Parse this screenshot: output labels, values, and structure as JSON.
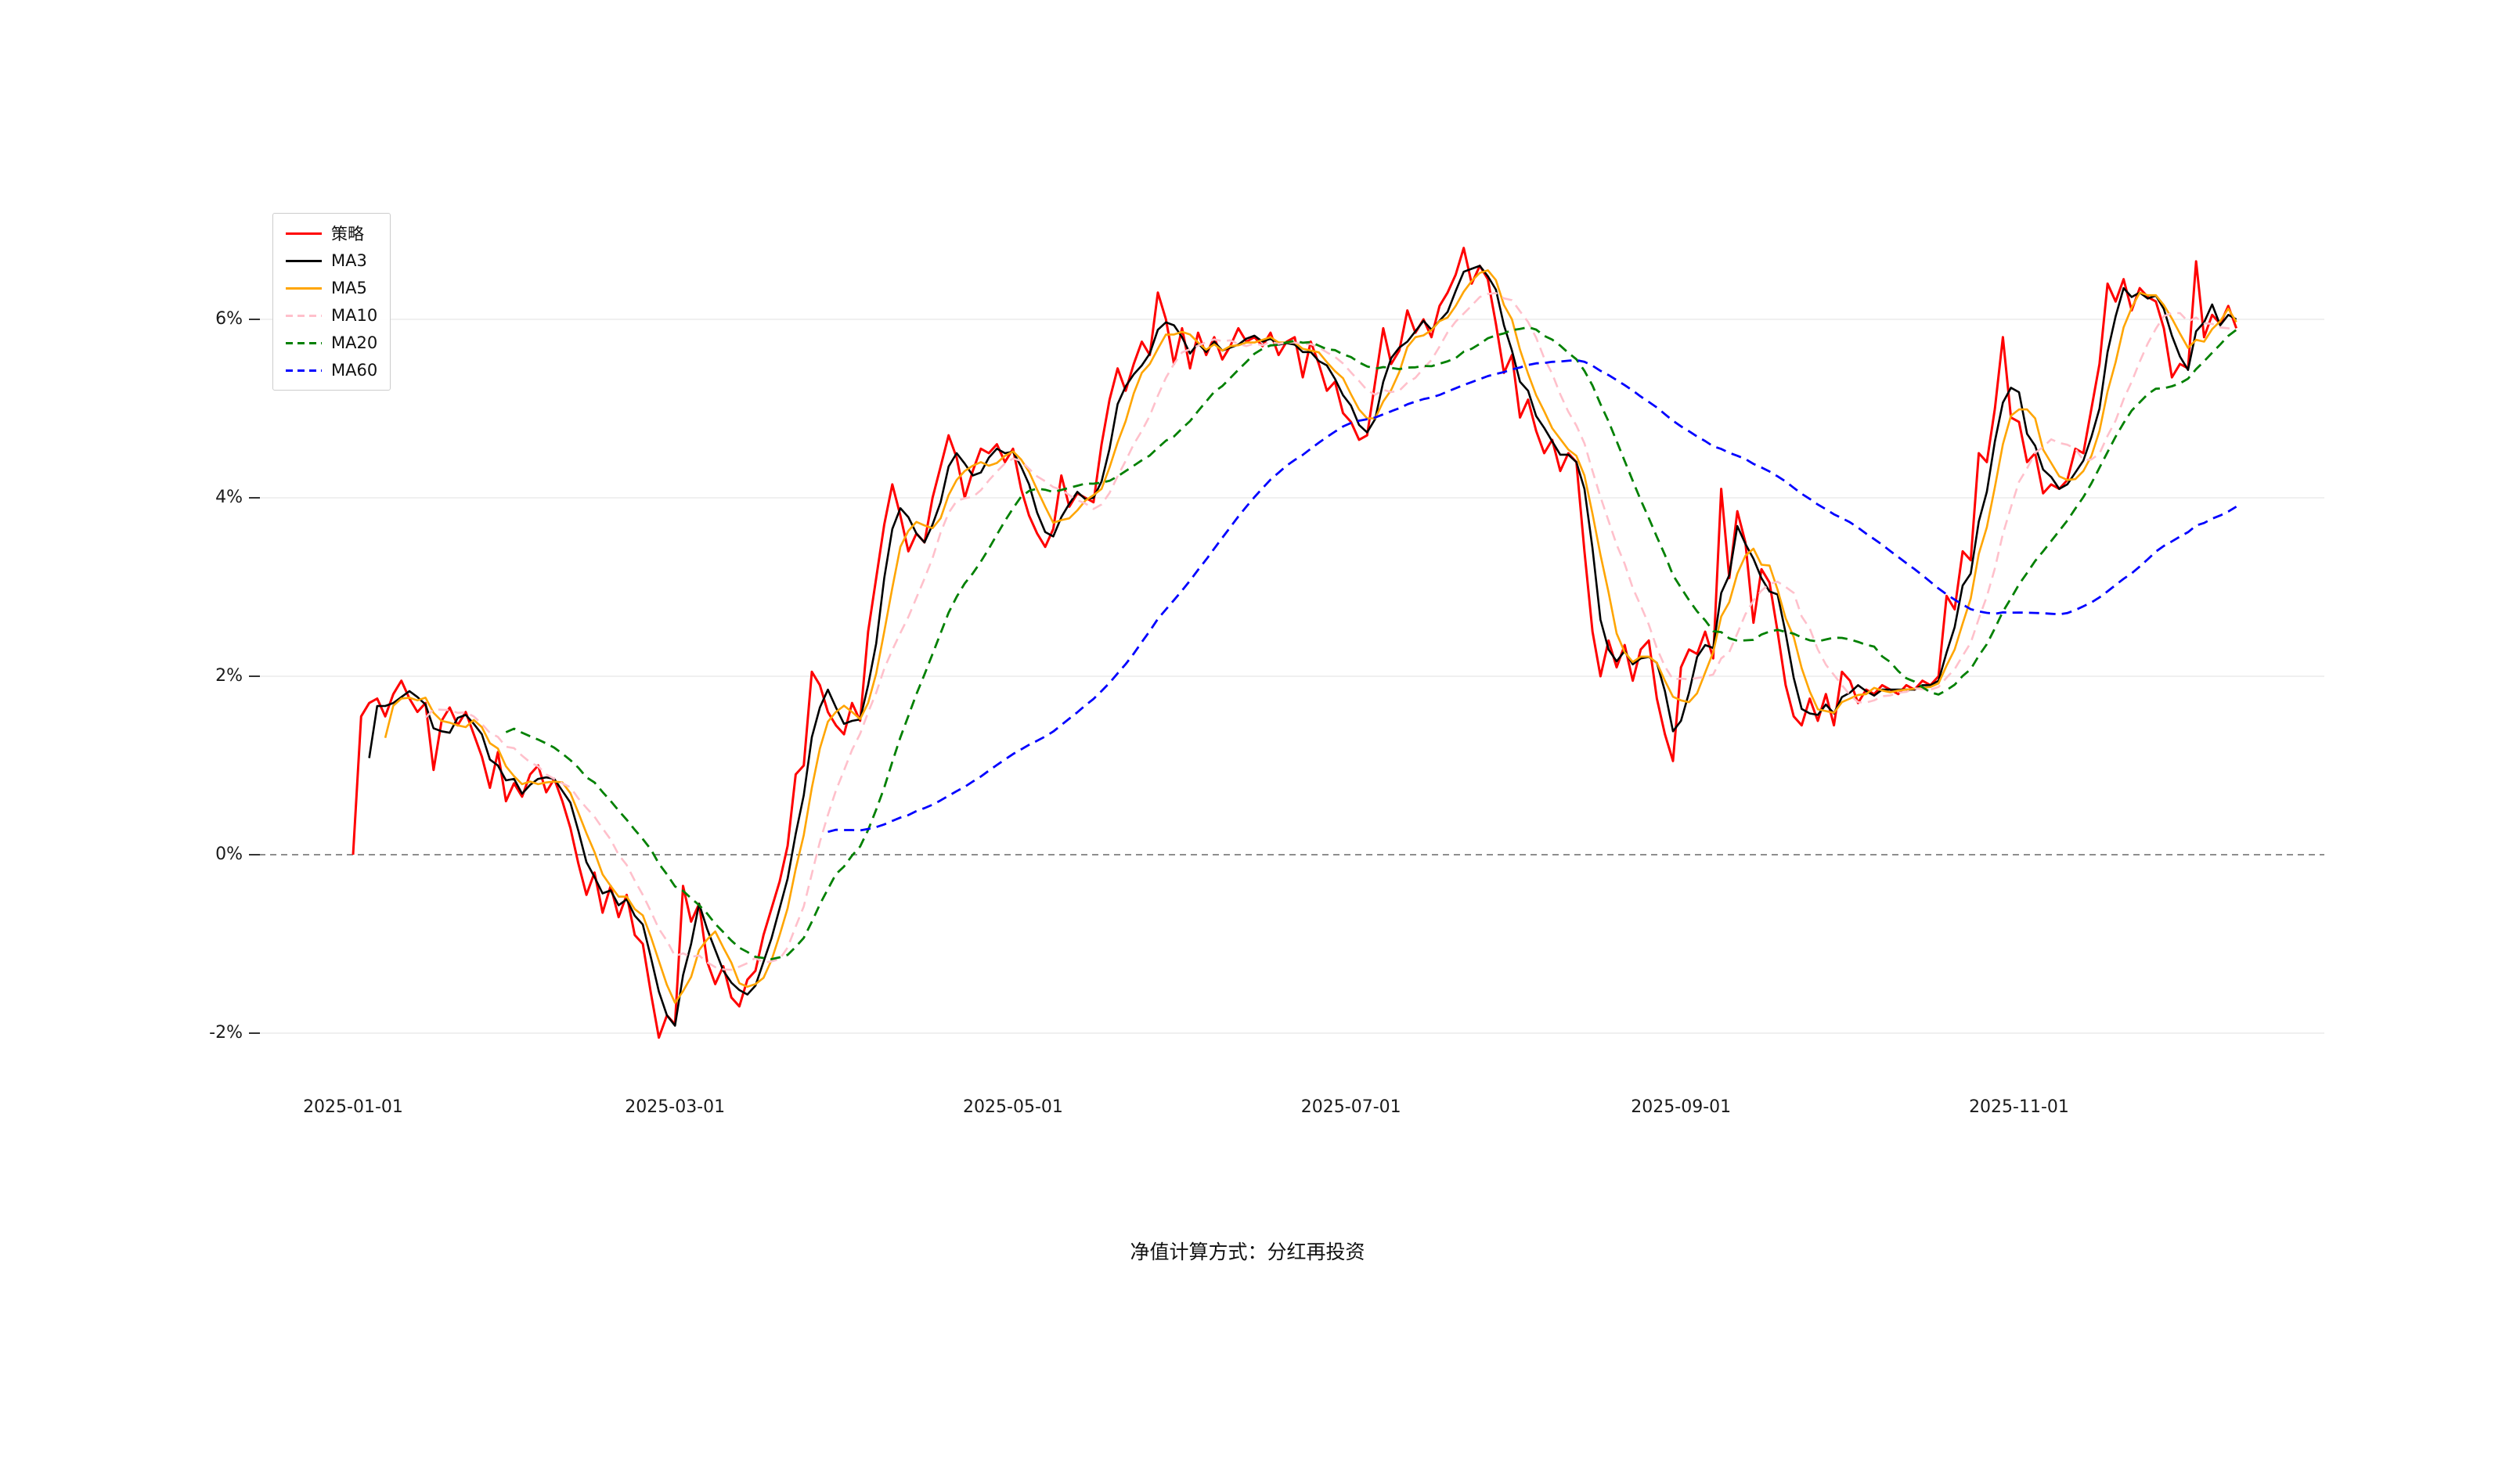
{
  "page": {
    "background": "#ffffff",
    "caption": "净值计算方式：分红再投资"
  },
  "chart_data": {
    "type": "line",
    "title": "",
    "xlabel": "",
    "ylabel": "",
    "grid": "horizontal-light",
    "legend_position": "top-left",
    "x_axis_type": "trading-day-index",
    "n_points": 235,
    "ylim": [
      -2.5,
      7.2
    ],
    "zero_line": {
      "style": "dashed",
      "color": "#7f7f7f"
    },
    "y_ticks": [
      {
        "value": 6,
        "label": "6%"
      },
      {
        "value": 4,
        "label": "4%"
      },
      {
        "value": 2,
        "label": "2%"
      },
      {
        "value": 0,
        "label": "0%"
      },
      {
        "value": -2,
        "label": "-2%"
      }
    ],
    "x_ticks": [
      {
        "index": 0,
        "label": "2025-01-01"
      },
      {
        "index": 40,
        "label": "2025-03-01"
      },
      {
        "index": 82,
        "label": "2025-05-01"
      },
      {
        "index": 124,
        "label": "2025-07-01"
      },
      {
        "index": 165,
        "label": "2025-09-01"
      },
      {
        "index": 207,
        "label": "2025-11-01"
      }
    ],
    "series": [
      {
        "key": "strategy",
        "name": "策略",
        "color": "#ff0000",
        "dash": "solid",
        "width": 3,
        "values": [
          0.0,
          1.55,
          1.7,
          1.75,
          1.55,
          1.8,
          1.95,
          1.75,
          1.6,
          1.7,
          0.95,
          1.5,
          1.65,
          1.45,
          1.6,
          1.35,
          1.1,
          0.75,
          1.15,
          0.6,
          0.8,
          0.65,
          0.9,
          1.0,
          0.7,
          0.85,
          0.6,
          0.3,
          -0.1,
          -0.45,
          -0.2,
          -0.65,
          -0.35,
          -0.7,
          -0.45,
          -0.9,
          -1.0,
          -1.55,
          -2.05,
          -1.8,
          -1.9,
          -0.35,
          -0.75,
          -0.55,
          -1.2,
          -1.45,
          -1.25,
          -1.6,
          -1.7,
          -1.4,
          -1.3,
          -0.9,
          -0.6,
          -0.3,
          0.1,
          0.9,
          1.0,
          2.05,
          1.9,
          1.6,
          1.45,
          1.35,
          1.7,
          1.5,
          2.5,
          3.1,
          3.7,
          4.15,
          3.8,
          3.4,
          3.6,
          3.5,
          4.0,
          4.35,
          4.7,
          4.45,
          4.0,
          4.3,
          4.55,
          4.5,
          4.6,
          4.4,
          4.55,
          4.1,
          3.8,
          3.6,
          3.45,
          3.65,
          4.25,
          3.9,
          4.05,
          4.0,
          3.95,
          4.6,
          5.1,
          5.45,
          5.2,
          5.5,
          5.75,
          5.6,
          6.3,
          6.0,
          5.5,
          5.9,
          5.45,
          5.85,
          5.6,
          5.8,
          5.55,
          5.7,
          5.9,
          5.75,
          5.8,
          5.7,
          5.85,
          5.6,
          5.75,
          5.8,
          5.35,
          5.75,
          5.5,
          5.2,
          5.3,
          4.95,
          4.85,
          4.65,
          4.7,
          5.3,
          5.9,
          5.5,
          5.65,
          6.1,
          5.85,
          6.0,
          5.8,
          6.15,
          6.3,
          6.5,
          6.8,
          6.4,
          6.6,
          6.45,
          5.95,
          5.4,
          5.6,
          4.9,
          5.1,
          4.75,
          4.5,
          4.65,
          4.3,
          4.5,
          4.4,
          3.4,
          2.5,
          2.0,
          2.4,
          2.1,
          2.35,
          1.95,
          2.3,
          2.4,
          1.75,
          1.35,
          1.05,
          2.1,
          2.3,
          2.25,
          2.5,
          2.2,
          4.1,
          3.1,
          3.85,
          3.5,
          2.6,
          3.2,
          3.05,
          2.5,
          1.9,
          1.55,
          1.45,
          1.75,
          1.5,
          1.8,
          1.45,
          2.05,
          1.95,
          1.7,
          1.85,
          1.8,
          1.9,
          1.85,
          1.8,
          1.9,
          1.85,
          1.95,
          1.9,
          2.0,
          2.9,
          2.75,
          3.4,
          3.3,
          4.5,
          4.4,
          5.0,
          5.8,
          4.9,
          4.85,
          4.4,
          4.5,
          4.05,
          4.15,
          4.1,
          4.2,
          4.55,
          4.5,
          5.0,
          5.5,
          6.4,
          6.2,
          6.45,
          6.1,
          6.35,
          6.25,
          6.2,
          5.9,
          5.35,
          5.5,
          5.45,
          6.65,
          5.8,
          6.05,
          5.95,
          6.15,
          5.9
        ]
      },
      {
        "key": "ma3",
        "name": "MA3",
        "color": "#000000",
        "dash": "solid",
        "width": 2.6,
        "derived": "rolling_mean",
        "window": 3,
        "source": "策略"
      },
      {
        "key": "ma5",
        "name": "MA5",
        "color": "#ffa500",
        "dash": "solid",
        "width": 2.6,
        "derived": "rolling_mean",
        "window": 5,
        "source": "策略"
      },
      {
        "key": "ma10",
        "name": "MA10",
        "color": "#ffc0cb",
        "dash": "dashed",
        "width": 2.6,
        "derived": "rolling_mean",
        "window": 10,
        "source": "策略"
      },
      {
        "key": "ma20",
        "name": "MA20",
        "color": "#008000",
        "dash": "dashed",
        "width": 2.8,
        "derived": "rolling_mean",
        "window": 20,
        "source": "策略"
      },
      {
        "key": "ma60",
        "name": "MA60",
        "color": "#0000ff",
        "dash": "dashed",
        "width": 2.8,
        "derived": "rolling_mean",
        "window": 60,
        "source": "策略"
      }
    ]
  }
}
